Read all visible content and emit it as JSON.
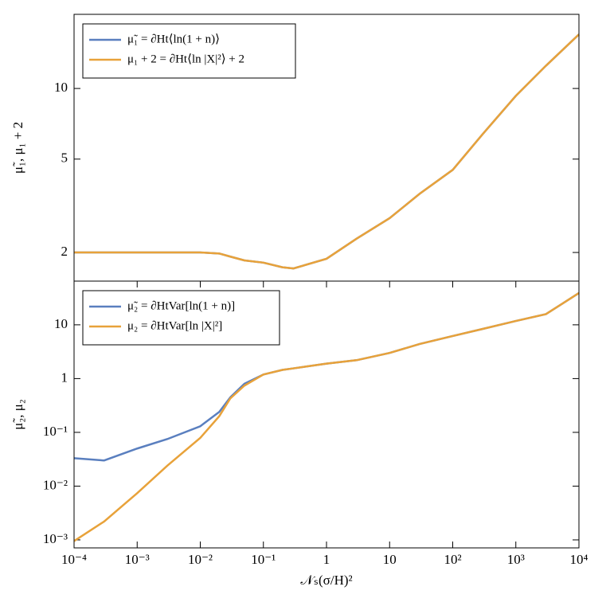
{
  "chart_data": [
    {
      "type": "line",
      "ylabel": "μ̃₁, μ₁ + 2",
      "xscale": "log",
      "yscale": "log",
      "legend": "upper left",
      "x": [
        0.0001,
        0.0003,
        0.001,
        0.003,
        0.01,
        0.02,
        0.03,
        0.05,
        0.1,
        0.2,
        0.3,
        1,
        3,
        10,
        30,
        100,
        300,
        1000,
        3000,
        10000
      ],
      "series": [
        {
          "name": "μ̃₁ = ∂Ht⟨ln(1 + n)⟩",
          "color": "#5a7fbf",
          "values": [
            2.0,
            2.0,
            2.0,
            2.0,
            2.0,
            1.98,
            1.92,
            1.85,
            1.81,
            1.73,
            1.71,
            1.88,
            2.29,
            2.8,
            3.56,
            4.5,
            6.4,
            9.3,
            12.5,
            17.0
          ]
        },
        {
          "name": "μ₁ + 2 = ∂Ht⟨ln |X|²⟩ + 2",
          "color": "#e8a23a",
          "values": [
            2.0,
            2.0,
            2.0,
            2.0,
            2.0,
            1.98,
            1.92,
            1.85,
            1.81,
            1.73,
            1.71,
            1.88,
            2.29,
            2.8,
            3.56,
            4.5,
            6.4,
            9.3,
            12.5,
            17.0
          ]
        }
      ],
      "xlim": [
        0.0001,
        10000
      ],
      "ylim": [
        1.51,
        20.7
      ],
      "yticks": [
        2,
        5,
        10
      ]
    },
    {
      "type": "line",
      "xlabel": "𝒩ₛ(σ/H)²",
      "ylabel": "μ̃₂, μ₂",
      "xscale": "log",
      "yscale": "log",
      "legend": "upper left",
      "x": [
        0.0001,
        0.0003,
        0.001,
        0.003,
        0.01,
        0.02,
        0.03,
        0.05,
        0.1,
        0.2,
        0.3,
        1,
        3,
        10,
        30,
        100,
        300,
        1000,
        3000,
        10000
      ],
      "series": [
        {
          "name": "μ̃₂ = ∂HtVar[ln(1 + n)]",
          "color": "#5a7fbf",
          "values": [
            0.033,
            0.03,
            0.05,
            0.075,
            0.13,
            0.24,
            0.45,
            0.8,
            1.19,
            1.45,
            1.55,
            1.9,
            2.2,
            3.0,
            4.4,
            6.2,
            8.4,
            11.8,
            15.8,
            39
          ]
        },
        {
          "name": "μ₂ = ∂HtVar[ln |X|²]",
          "color": "#e8a23a",
          "values": [
            0.00095,
            0.0022,
            0.0074,
            0.024,
            0.079,
            0.2,
            0.43,
            0.74,
            1.19,
            1.45,
            1.55,
            1.9,
            2.2,
            3.0,
            4.4,
            6.2,
            8.4,
            11.8,
            15.8,
            39
          ]
        }
      ],
      "xlim": [
        0.0001,
        10000
      ],
      "ylim": [
        0.00071,
        65
      ],
      "xticks": [
        {
          "value": 0.0001,
          "label": "10⁻⁴"
        },
        {
          "value": 0.001,
          "label": "10⁻³"
        },
        {
          "value": 0.01,
          "label": "10⁻²"
        },
        {
          "value": 0.1,
          "label": "10⁻¹"
        },
        1,
        10,
        {
          "value": 100,
          "label": "10²"
        },
        {
          "value": 1000,
          "label": "10³"
        },
        {
          "value": 10000,
          "label": "10⁴"
        }
      ],
      "yticks": [
        {
          "value": 0.001,
          "label": "10⁻³"
        },
        {
          "value": 0.01,
          "label": "10⁻²"
        },
        {
          "value": 0.1,
          "label": "10⁻¹"
        },
        1,
        10
      ]
    }
  ]
}
